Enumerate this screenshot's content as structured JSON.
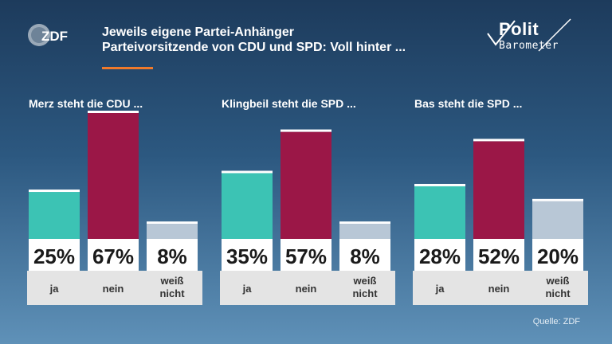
{
  "header": {
    "logo_text": "ZDF",
    "title_line1": "Jeweils eigene Partei-Anhänger",
    "title_line2": "Parteivorsitzende von CDU und SPD: Voll hinter ...",
    "accent_color": "#f07a2b"
  },
  "brand": {
    "line1": "Polit",
    "line2": "Barometer"
  },
  "source": "Quelle: ZDF",
  "chart_data": {
    "type": "bar",
    "ylim": [
      0,
      67
    ],
    "colors": {
      "ja": "#3cc3b4",
      "nein": "#9b1747",
      "weiss_nicht": "#b8c7d6"
    },
    "groups": [
      {
        "title": "Merz steht die CDU ...",
        "bars": [
          {
            "category": "ja",
            "label": "ja",
            "value": 25,
            "display": "25%"
          },
          {
            "category": "nein",
            "label": "nein",
            "value": 67,
            "display": "67%"
          },
          {
            "category": "weiss_nicht",
            "label": "weiß nicht",
            "value": 8,
            "display": "8%"
          }
        ]
      },
      {
        "title": "Klingbeil steht die SPD ...",
        "bars": [
          {
            "category": "ja",
            "label": "ja",
            "value": 35,
            "display": "35%"
          },
          {
            "category": "nein",
            "label": "nein",
            "value": 57,
            "display": "57%"
          },
          {
            "category": "weiss_nicht",
            "label": "weiß nicht",
            "value": 8,
            "display": "8%"
          }
        ]
      },
      {
        "title": "Bas steht die SPD ...",
        "bars": [
          {
            "category": "ja",
            "label": "ja",
            "value": 28,
            "display": "28%"
          },
          {
            "category": "nein",
            "label": "nein",
            "value": 52,
            "display": "52%"
          },
          {
            "category": "weiss_nicht",
            "label": "weiß nicht",
            "value": 20,
            "display": "20%"
          }
        ]
      }
    ]
  }
}
